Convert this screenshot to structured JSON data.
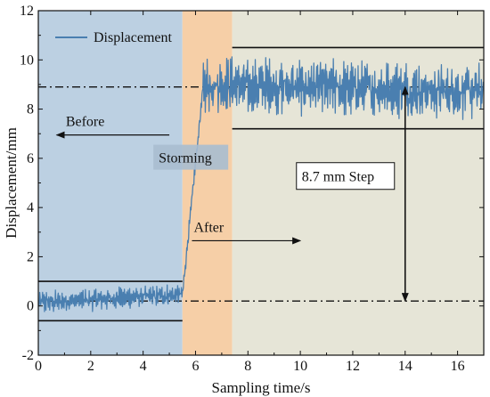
{
  "chart_data": {
    "type": "line",
    "xlabel": "Sampling time/s",
    "ylabel": "Displacement/mm",
    "xlim": [
      0,
      17
    ],
    "ylim": [
      -2,
      12
    ],
    "x_ticks": [
      0,
      2,
      4,
      6,
      8,
      10,
      12,
      14,
      16
    ],
    "y_ticks": [
      -2,
      0,
      2,
      4,
      6,
      8,
      10,
      12
    ],
    "x_tick_labels": [
      "0",
      "2",
      "4",
      "6",
      "8",
      "10",
      "12",
      "14",
      "16"
    ],
    "y_tick_labels": [
      "-2",
      "0",
      "2",
      "4",
      "6",
      "8",
      "10",
      "12"
    ],
    "grid": false,
    "legend": {
      "position": "top-left",
      "entries": [
        "Displacement"
      ]
    },
    "series": [
      {
        "name": "Displacement",
        "color": "#4a7fb0",
        "segments": [
          {
            "x_start": 0.0,
            "x_end": 5.5,
            "center_start": 0.15,
            "center_end": 0.45,
            "amplitude": 0.55
          },
          {
            "x_start": 5.5,
            "x_end": 6.3,
            "center_start": 0.45,
            "center_end": 9.0,
            "amplitude": 0.35
          },
          {
            "x_start": 6.3,
            "x_end": 17.0,
            "center_start": 9.0,
            "center_end": 8.7,
            "amplitude": 1.35
          }
        ]
      }
    ],
    "regions": [
      {
        "label": "Before",
        "x_start": 0,
        "x_end": 5.5,
        "color": "#bcd0e2"
      },
      {
        "label": "Storming",
        "x_start": 5.5,
        "x_end": 7.4,
        "color": "#f6cfa7"
      },
      {
        "label": "After",
        "x_start": 7.4,
        "x_end": 17,
        "color": "#e6e5d7"
      }
    ],
    "envelope_lines": [
      {
        "x_start": 0,
        "x_end": 5.5,
        "y": 1.0
      },
      {
        "x_start": 0,
        "x_end": 5.5,
        "y": -0.6
      },
      {
        "x_start": 7.4,
        "x_end": 17,
        "y": 10.5
      },
      {
        "x_start": 7.4,
        "x_end": 17,
        "y": 7.2
      }
    ],
    "reference_lines": [
      {
        "y": 8.9,
        "style": "dash-dot"
      },
      {
        "y": 0.2,
        "style": "dash-dot"
      }
    ],
    "annotations": {
      "before": {
        "text": "Before",
        "arrow": "left",
        "x": 2.0,
        "y": 7.5
      },
      "storming": {
        "text": "Storming",
        "x": 6.5,
        "y": 5.9
      },
      "after": {
        "text": "After",
        "arrow": "right",
        "x": 6.0,
        "y": 3.2
      },
      "step": {
        "text": "8.7 mm Step",
        "x": 14.0,
        "y_from": 0.2,
        "y_to": 8.9
      }
    }
  }
}
